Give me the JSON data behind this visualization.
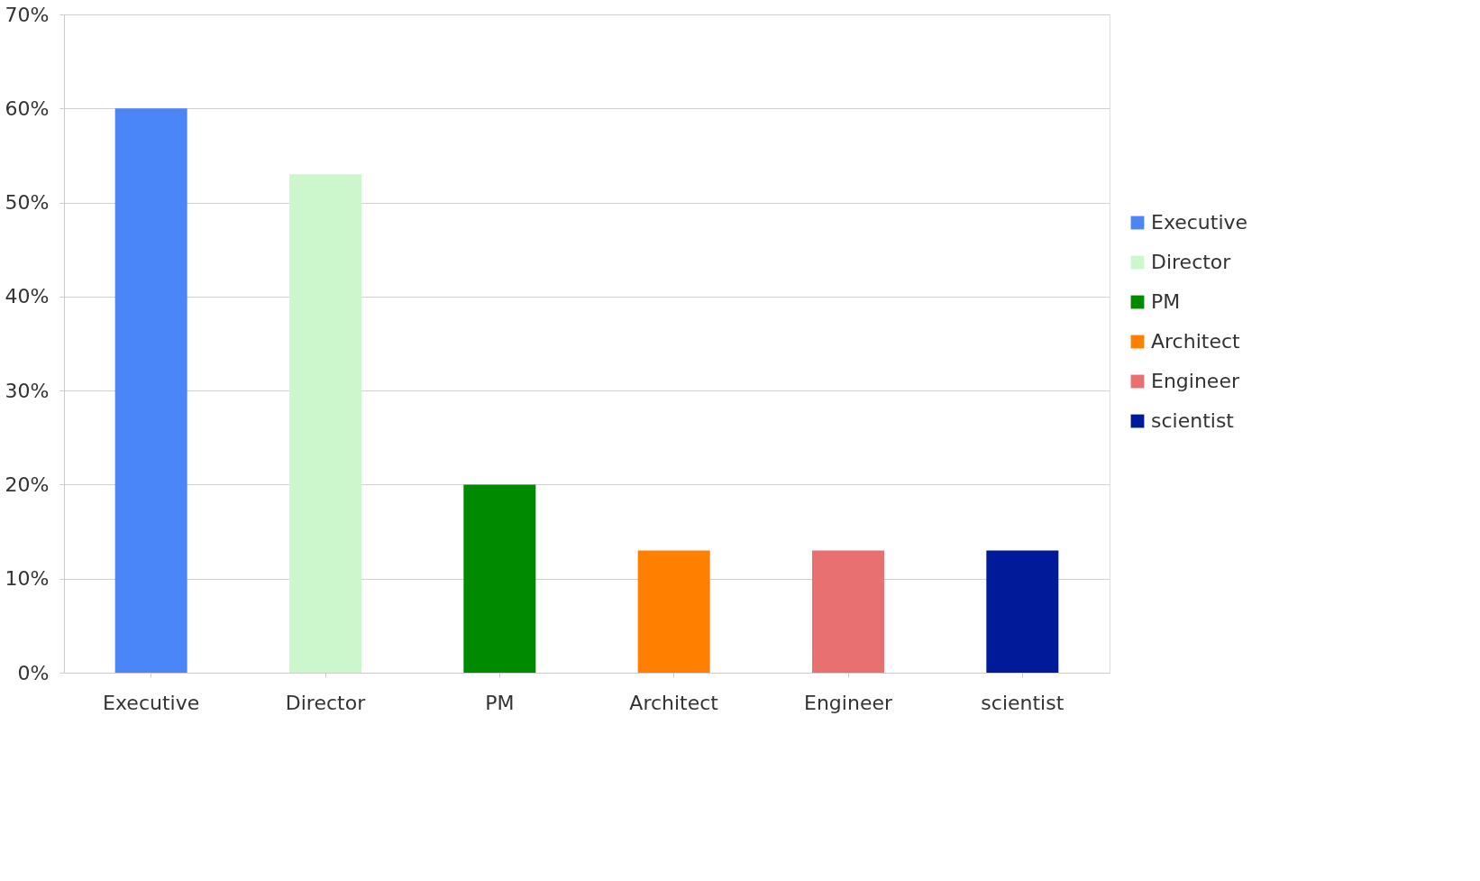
{
  "chart_data": {
    "type": "bar",
    "categories": [
      "Executive",
      "Director",
      "PM",
      "Architect",
      "Engineer",
      "scientist"
    ],
    "series": [
      {
        "name": "Executive",
        "color": "#4a86f7",
        "values": [
          60,
          null,
          null,
          null,
          null,
          null
        ]
      },
      {
        "name": "Director",
        "color": "#ccf7cc",
        "values": [
          null,
          53,
          null,
          null,
          null,
          null
        ]
      },
      {
        "name": "PM",
        "color": "#008a00",
        "values": [
          null,
          null,
          20,
          null,
          null,
          null
        ]
      },
      {
        "name": "Architect",
        "color": "#ff8000",
        "values": [
          null,
          null,
          null,
          13,
          null,
          null
        ]
      },
      {
        "name": "Engineer",
        "color": "#e87070",
        "values": [
          null,
          null,
          null,
          null,
          13,
          null
        ]
      },
      {
        "name": "scientist",
        "color": "#001a99",
        "values": [
          null,
          null,
          null,
          null,
          null,
          13
        ]
      }
    ],
    "ylim": [
      0,
      70
    ],
    "yticks": [
      {
        "value": 0,
        "label": "0%"
      },
      {
        "value": 10,
        "label": "10%"
      },
      {
        "value": 20,
        "label": "20%"
      },
      {
        "value": 30,
        "label": "30%"
      },
      {
        "value": 40,
        "label": "40%"
      },
      {
        "value": 50,
        "label": "50%"
      },
      {
        "value": 60,
        "label": "60%"
      },
      {
        "value": 70,
        "label": "70%"
      }
    ],
    "grid": "y",
    "legend": "right"
  }
}
